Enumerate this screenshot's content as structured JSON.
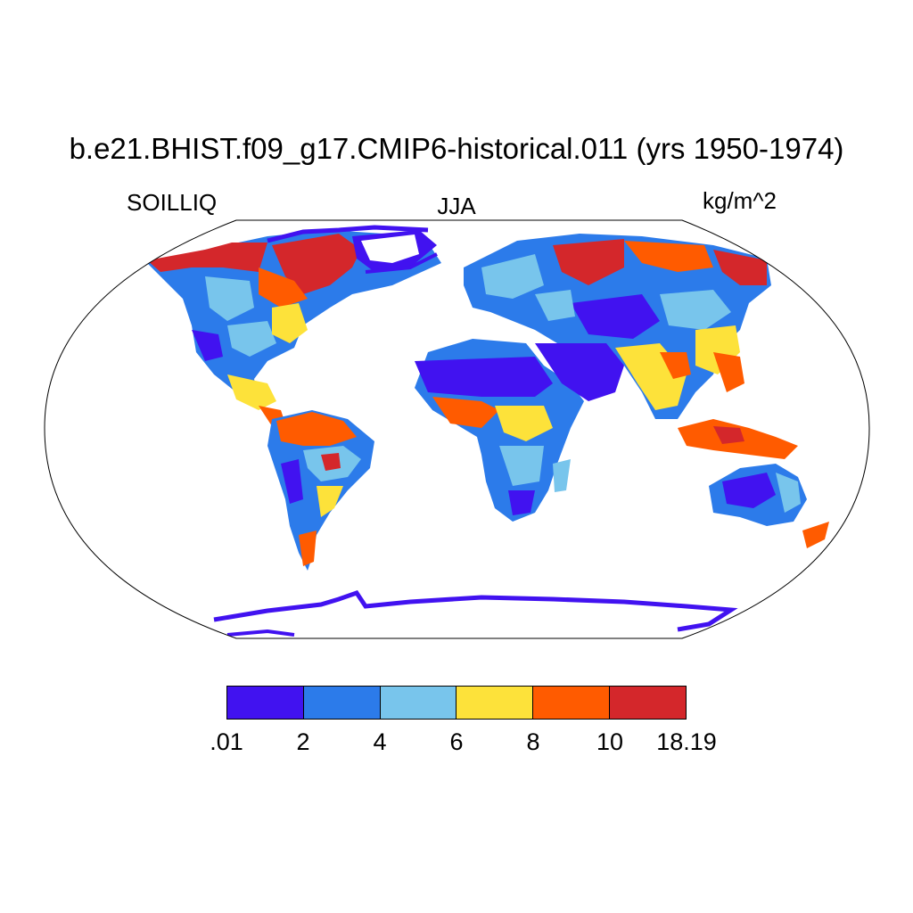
{
  "title": "b.e21.BHIST.f09_g17.CMIP6-historical.011 (yrs 1950-1974)",
  "variable": "SOILLIQ",
  "season": "JJA",
  "units": "kg/m^2",
  "colorbar": {
    "colors": [
      "#4112f0",
      "#2c7bea",
      "#78c5ec",
      "#fde23a",
      "#ff5b00",
      "#d4272b"
    ],
    "labels": [
      ".01",
      "2",
      "4",
      "6",
      "8",
      "10",
      "18.19"
    ]
  },
  "map": {
    "projection": "Robinson",
    "ocean_color": "#ffffff",
    "outline_color": "#000000"
  }
}
